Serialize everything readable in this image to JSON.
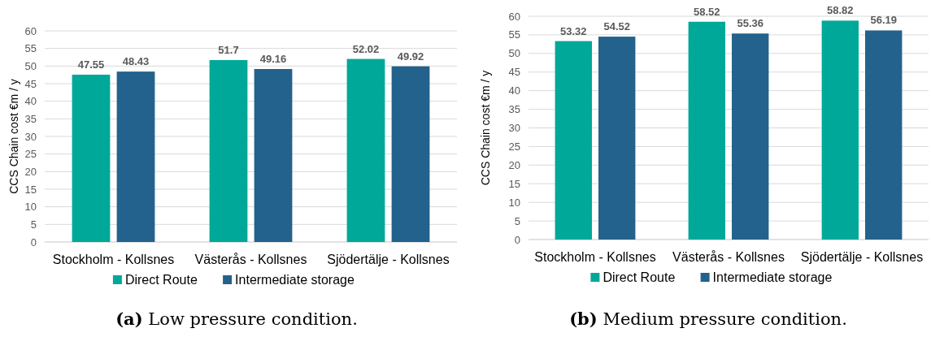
{
  "chart_data": [
    {
      "type": "bar",
      "categories": [
        "Stockholm - Kollsnes",
        "Västerås - Kollsnes",
        "Sjödertälje - Kollsnes"
      ],
      "ylabel": "CCS Chain cost  €m / y",
      "ylim": [
        0,
        60
      ],
      "yticks": [
        0,
        5,
        10,
        15,
        20,
        25,
        30,
        35,
        40,
        45,
        50,
        55,
        60
      ],
      "grid": "y",
      "legend": "bottom",
      "data_labels": true,
      "annotations": [
        "(a) Low pressure condition."
      ],
      "series": [
        {
          "name": "Direct Route",
          "color": "#00a89a",
          "values": [
            47.55,
            51.7,
            52.02
          ]
        },
        {
          "name": "Intermediate storage",
          "color": "#23628c",
          "values": [
            48.43,
            49.16,
            49.92
          ]
        }
      ]
    },
    {
      "type": "bar",
      "categories": [
        "Stockholm - Kollsnes",
        "Västerås - Kollsnes",
        "Sjödertälje - Kollsnes"
      ],
      "ylabel": "CCS Chain cost  €m / y",
      "ylim": [
        0,
        60
      ],
      "yticks": [
        0,
        5,
        10,
        15,
        20,
        25,
        30,
        35,
        40,
        45,
        50,
        55,
        60
      ],
      "grid": "y",
      "legend": "bottom",
      "data_labels": true,
      "annotations": [
        "(b) Medium pressure condition."
      ],
      "series": [
        {
          "name": "Direct Route",
          "color": "#00a89a",
          "values": [
            53.32,
            58.52,
            58.82
          ]
        },
        {
          "name": "Intermediate storage",
          "color": "#23628c",
          "values": [
            54.52,
            55.36,
            56.19
          ]
        }
      ]
    }
  ]
}
